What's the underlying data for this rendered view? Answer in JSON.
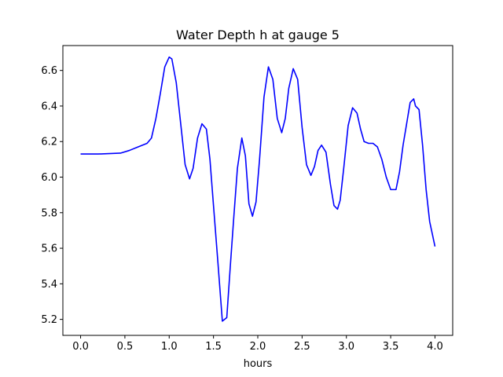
{
  "chart_data": {
    "type": "line",
    "title": "Water Depth h at gauge 5",
    "xlabel": "hours",
    "ylabel": "",
    "xlim": [
      -0.2,
      4.2
    ],
    "ylim": [
      5.11,
      6.74
    ],
    "xticks": [
      0.0,
      0.5,
      1.0,
      1.5,
      2.0,
      2.5,
      3.0,
      3.5,
      4.0
    ],
    "xtick_labels": [
      "0.0",
      "0.5",
      "1.0",
      "1.5",
      "2.0",
      "2.5",
      "3.0",
      "3.5",
      "4.0"
    ],
    "yticks": [
      5.2,
      5.4,
      5.6,
      5.8,
      6.0,
      6.2,
      6.4,
      6.6
    ],
    "ytick_labels": [
      "5.2",
      "5.4",
      "5.6",
      "5.8",
      "6.0",
      "6.2",
      "6.4",
      "6.6"
    ],
    "grid": false,
    "series": [
      {
        "color": "#0000ff",
        "x": [
          0.0,
          0.2,
          0.45,
          0.55,
          0.65,
          0.75,
          0.8,
          0.85,
          0.9,
          0.95,
          1.0,
          1.03,
          1.08,
          1.13,
          1.18,
          1.23,
          1.27,
          1.32,
          1.37,
          1.42,
          1.46,
          1.5,
          1.55,
          1.6,
          1.65,
          1.69,
          1.73,
          1.77,
          1.82,
          1.86,
          1.9,
          1.94,
          1.98,
          2.02,
          2.07,
          2.12,
          2.17,
          2.22,
          2.27,
          2.31,
          2.35,
          2.4,
          2.45,
          2.5,
          2.55,
          2.6,
          2.64,
          2.68,
          2.72,
          2.77,
          2.82,
          2.86,
          2.9,
          2.93,
          2.97,
          3.02,
          3.07,
          3.12,
          3.16,
          3.2,
          3.25,
          3.3,
          3.35,
          3.4,
          3.45,
          3.5,
          3.56,
          3.6,
          3.64,
          3.68,
          3.72,
          3.76,
          3.78,
          3.82,
          3.86,
          3.9,
          3.94,
          3.97,
          4.0
        ],
        "y": [
          6.13,
          6.13,
          6.135,
          6.15,
          6.17,
          6.19,
          6.22,
          6.33,
          6.47,
          6.62,
          6.675,
          6.665,
          6.53,
          6.3,
          6.07,
          5.99,
          6.05,
          6.22,
          6.3,
          6.27,
          6.1,
          5.84,
          5.52,
          5.19,
          5.21,
          5.5,
          5.78,
          6.05,
          6.22,
          6.12,
          5.85,
          5.78,
          5.86,
          6.1,
          6.45,
          6.62,
          6.55,
          6.33,
          6.25,
          6.33,
          6.5,
          6.61,
          6.55,
          6.28,
          6.07,
          6.01,
          6.06,
          6.15,
          6.18,
          6.14,
          5.96,
          5.84,
          5.82,
          5.87,
          6.05,
          6.29,
          6.39,
          6.36,
          6.27,
          6.2,
          6.19,
          6.19,
          6.17,
          6.1,
          6.0,
          5.93,
          5.93,
          6.03,
          6.18,
          6.3,
          6.42,
          6.44,
          6.4,
          6.38,
          6.18,
          5.93,
          5.75,
          5.68,
          5.61
        ]
      }
    ]
  }
}
